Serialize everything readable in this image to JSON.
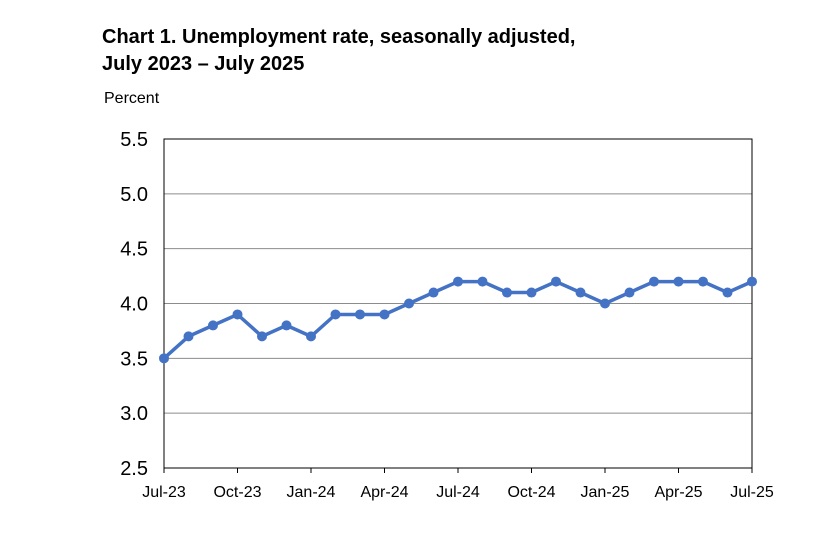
{
  "title_line1": "Chart 1. Unemployment rate, seasonally adjusted,",
  "title_line2": "July 2023 – July 2025",
  "chart_data": {
    "type": "line",
    "title": "Chart 1. Unemployment rate, seasonally adjusted, July 2023 – July 2025",
    "ylabel": "Percent",
    "xlabel": "",
    "ylim": [
      2.5,
      5.5
    ],
    "yticks": [
      "2.5",
      "3.0",
      "3.5",
      "4.0",
      "4.5",
      "5.0",
      "5.5"
    ],
    "categories": [
      "Jul-23",
      "Aug-23",
      "Sep-23",
      "Oct-23",
      "Nov-23",
      "Dec-23",
      "Jan-24",
      "Feb-24",
      "Mar-24",
      "Apr-24",
      "May-24",
      "Jun-24",
      "Jul-24",
      "Aug-24",
      "Sep-24",
      "Oct-24",
      "Nov-24",
      "Dec-24",
      "Jan-25",
      "Feb-25",
      "Mar-25",
      "Apr-25",
      "May-25",
      "Jun-25",
      "Jul-25"
    ],
    "xtick_labels": [
      "Jul-23",
      "Oct-23",
      "Jan-24",
      "Apr-24",
      "Jul-24",
      "Oct-24",
      "Jan-25",
      "Apr-25",
      "Jul-25"
    ],
    "values": [
      3.5,
      3.7,
      3.8,
      3.9,
      3.7,
      3.8,
      3.7,
      3.9,
      3.9,
      3.9,
      4.0,
      4.1,
      4.2,
      4.2,
      4.1,
      4.1,
      4.2,
      4.1,
      4.0,
      4.1,
      4.2,
      4.2,
      4.2,
      4.1,
      4.2
    ],
    "grid": "horizontal",
    "legend": "none",
    "line_color": "#4472C4"
  }
}
